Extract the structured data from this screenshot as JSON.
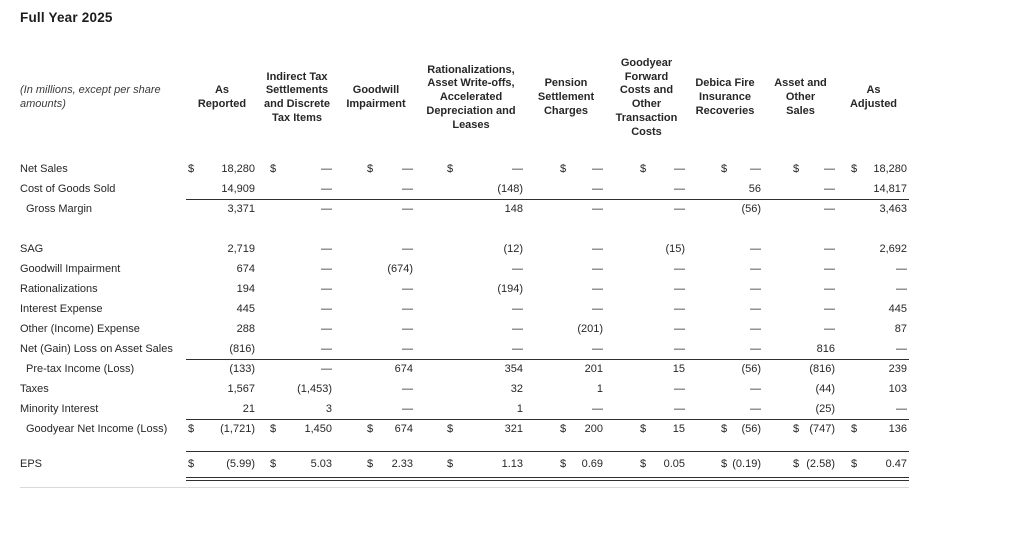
{
  "title": "Full Year 2025",
  "table": {
    "unit_note": "(In millions, except per share\namounts)",
    "columns": [
      "As\nReported",
      "Indirect Tax\nSettlements\nand Discrete\nTax Items",
      "Goodwill\nImpairment",
      "Rationalizations,\nAsset Write-offs,\nAccelerated\nDepreciation and\nLeases",
      "Pension\nSettlement\nCharges",
      "Goodyear\nForward\nCosts and\nOther\nTransaction\nCosts",
      "Debica Fire\nInsurance\nRecoveries",
      "Asset and\nOther\nSales",
      "As\nAdjusted"
    ],
    "currency_symbol": "$",
    "rows": [
      {
        "label": "Net Sales",
        "indent": false,
        "dollar": true,
        "values": [
          "18,280",
          "—",
          "—",
          "—",
          "—",
          "—",
          "—",
          "—",
          "18,280"
        ],
        "rule_below": null,
        "rule_above": false,
        "spacer_after": null
      },
      {
        "label": "Cost of Goods Sold",
        "indent": false,
        "dollar": false,
        "values": [
          "14,909",
          "—",
          "—",
          "(148)",
          "—",
          "—",
          "56",
          "—",
          "14,817"
        ],
        "rule_below": "single",
        "rule_above": false,
        "spacer_after": null
      },
      {
        "label": "Gross Margin",
        "indent": true,
        "dollar": false,
        "values": [
          "3,371",
          "—",
          "—",
          "148",
          "—",
          "—",
          "(56)",
          "—",
          "3,463"
        ],
        "rule_below": null,
        "rule_above": false,
        "spacer_after": "normal"
      },
      {
        "label": "SAG",
        "indent": false,
        "dollar": false,
        "values": [
          "2,719",
          "—",
          "—",
          "(12)",
          "—",
          "(15)",
          "—",
          "—",
          "2,692"
        ],
        "rule_below": null,
        "rule_above": false,
        "spacer_after": null
      },
      {
        "label": "Goodwill Impairment",
        "indent": false,
        "dollar": false,
        "values": [
          "674",
          "—",
          "(674)",
          "—",
          "—",
          "—",
          "—",
          "—",
          "—"
        ],
        "rule_below": null,
        "rule_above": false,
        "spacer_after": null
      },
      {
        "label": "Rationalizations",
        "indent": false,
        "dollar": false,
        "values": [
          "194",
          "—",
          "—",
          "(194)",
          "—",
          "—",
          "—",
          "—",
          "—"
        ],
        "rule_below": null,
        "rule_above": false,
        "spacer_after": null
      },
      {
        "label": "Interest Expense",
        "indent": false,
        "dollar": false,
        "values": [
          "445",
          "—",
          "—",
          "—",
          "—",
          "—",
          "—",
          "—",
          "445"
        ],
        "rule_below": null,
        "rule_above": false,
        "spacer_after": null
      },
      {
        "label": "Other (Income) Expense",
        "indent": false,
        "dollar": false,
        "values": [
          "288",
          "—",
          "—",
          "—",
          "(201)",
          "—",
          "—",
          "—",
          "87"
        ],
        "rule_below": null,
        "rule_above": false,
        "spacer_after": null
      },
      {
        "label": "Net (Gain) Loss on Asset Sales",
        "indent": false,
        "dollar": false,
        "values": [
          "(816)",
          "—",
          "—",
          "—",
          "—",
          "—",
          "—",
          "816",
          "—"
        ],
        "rule_below": "single",
        "rule_above": false,
        "spacer_after": null
      },
      {
        "label": "Pre-tax Income (Loss)",
        "indent": true,
        "dollar": false,
        "values": [
          "(133)",
          "—",
          "674",
          "354",
          "201",
          "15",
          "(56)",
          "(816)",
          "239"
        ],
        "rule_below": null,
        "rule_above": false,
        "spacer_after": null
      },
      {
        "label": "Taxes",
        "indent": false,
        "dollar": false,
        "values": [
          "1,567",
          "(1,453)",
          "—",
          "32",
          "1",
          "—",
          "—",
          "(44)",
          "103"
        ],
        "rule_below": null,
        "rule_above": false,
        "spacer_after": null
      },
      {
        "label": "Minority Interest",
        "indent": false,
        "dollar": false,
        "values": [
          "21",
          "3",
          "—",
          "1",
          "—",
          "—",
          "—",
          "(25)",
          "—"
        ],
        "rule_below": "single",
        "rule_above": false,
        "spacer_after": null
      },
      {
        "label": "Goodyear Net Income (Loss)",
        "indent": true,
        "dollar": true,
        "values": [
          "(1,721)",
          "1,450",
          "674",
          "321",
          "200",
          "15",
          "(56)",
          "(747)",
          "136"
        ],
        "rule_below": null,
        "rule_above": false,
        "spacer_after": "small"
      },
      {
        "label": "EPS",
        "indent": false,
        "dollar": true,
        "values": [
          "(5.99)",
          "5.03",
          "2.33",
          "1.13",
          "0.69",
          "0.05",
          "(0.19)",
          "(2.58)",
          "0.47"
        ],
        "rule_below": "double",
        "rule_above": true,
        "spacer_after": null
      }
    ]
  }
}
